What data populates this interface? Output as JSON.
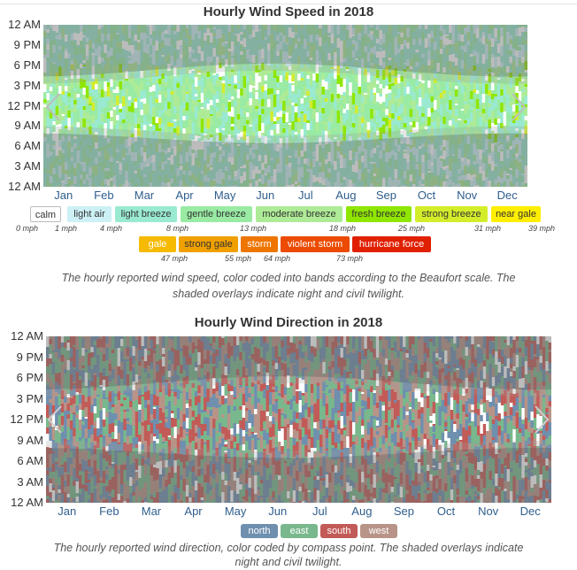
{
  "wind_speed": {
    "title": "Hourly Wind Speed in 2018",
    "caption_line1": "The hourly reported wind speed, color coded into bands according to the Beaufort scale. The",
    "caption_line2": "shaded overlays indicate night and civil twilight.",
    "y_ticks": [
      "12 AM",
      "9 PM",
      "6 PM",
      "3 PM",
      "12 PM",
      "9 AM",
      "6 AM",
      "3 AM",
      "12 AM"
    ],
    "x_ticks": [
      "Jan",
      "Feb",
      "Mar",
      "Apr",
      "May",
      "Jun",
      "Jul",
      "Aug",
      "Sep",
      "Oct",
      "Nov",
      "Dec"
    ],
    "legend_row1": [
      {
        "label": "calm",
        "color": "#ffffff"
      },
      {
        "label": "light air",
        "color": "#ccf0f5"
      },
      {
        "label": "light breeze",
        "color": "#99ead0"
      },
      {
        "label": "gentle breeze",
        "color": "#99eba4"
      },
      {
        "label": "moderate breeze",
        "color": "#aeeb96"
      },
      {
        "label": "fresh breeze",
        "color": "#8fe600"
      },
      {
        "label": "strong breeze",
        "color": "#d4ed2a"
      },
      {
        "label": "near gale",
        "color": "#ffee00"
      }
    ],
    "legend_row2": [
      {
        "label": "gale",
        "color": "#f6ba00"
      },
      {
        "label": "strong gale",
        "color": "#f0a000"
      },
      {
        "label": "storm",
        "color": "#ee7500"
      },
      {
        "label": "violent storm",
        "color": "#ec4a00"
      },
      {
        "label": "hurricane force",
        "color": "#e02000"
      }
    ],
    "thresholds_row1": [
      "0 mph",
      "1 mph",
      "4 mph",
      "8 mph",
      "13 mph",
      "18 mph",
      "25 mph",
      "31 mph",
      "39 mph"
    ],
    "thresholds_row2": [
      "47 mph",
      "55 mph",
      "64 mph",
      "73 mph"
    ]
  },
  "wind_direction": {
    "title": "Hourly Wind Direction in 2018",
    "caption_line1": "The hourly reported wind direction, color coded by compass point. The shaded overlays indicate",
    "caption_line2": "night and civil twilight.",
    "y_ticks": [
      "12 AM",
      "9 PM",
      "6 PM",
      "3 PM",
      "12 PM",
      "9 AM",
      "6 AM",
      "3 AM",
      "12 AM"
    ],
    "x_ticks": [
      "Jan",
      "Feb",
      "Mar",
      "Apr",
      "May",
      "Jun",
      "Jul",
      "Aug",
      "Sep",
      "Oct",
      "Nov",
      "Dec"
    ],
    "legend": [
      {
        "label": "north",
        "color": "#6f8faf"
      },
      {
        "label": "east",
        "color": "#78b88c"
      },
      {
        "label": "south",
        "color": "#c25b57"
      },
      {
        "label": "west",
        "color": "#b89488"
      }
    ]
  },
  "chart_data": [
    {
      "type": "heatmap",
      "title": "Hourly Wind Speed in 2018",
      "x": [
        "Jan",
        "Feb",
        "Mar",
        "Apr",
        "May",
        "Jun",
        "Jul",
        "Aug",
        "Sep",
        "Oct",
        "Nov",
        "Dec"
      ],
      "y": [
        "12 AM",
        "3 AM",
        "6 AM",
        "9 AM",
        "12 PM",
        "3 PM",
        "6 PM",
        "9 PM",
        "12 AM"
      ],
      "bands": [
        "calm",
        "light air",
        "light breeze",
        "gentle breeze",
        "moderate breeze",
        "fresh breeze",
        "strong breeze",
        "near gale",
        "gale",
        "strong gale",
        "storm",
        "violent storm",
        "hurricane force"
      ],
      "band_thresholds_mph": [
        0,
        1,
        4,
        8,
        13,
        18,
        25,
        31,
        39,
        47,
        55,
        64,
        73
      ],
      "overlay": "night and civil twilight shading"
    },
    {
      "type": "heatmap",
      "title": "Hourly Wind Direction in 2018",
      "x": [
        "Jan",
        "Feb",
        "Mar",
        "Apr",
        "May",
        "Jun",
        "Jul",
        "Aug",
        "Sep",
        "Oct",
        "Nov",
        "Dec"
      ],
      "y": [
        "12 AM",
        "3 AM",
        "6 AM",
        "9 AM",
        "12 PM",
        "3 PM",
        "6 PM",
        "9 PM",
        "12 AM"
      ],
      "categories": [
        "north",
        "east",
        "south",
        "west"
      ],
      "overlay": "night and civil twilight shading"
    }
  ]
}
